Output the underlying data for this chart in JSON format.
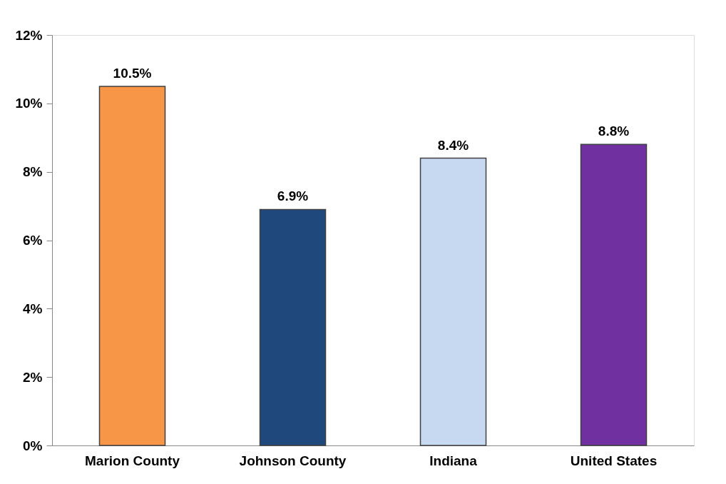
{
  "chart_data": {
    "type": "bar",
    "categories": [
      "Marion County",
      "Johnson County",
      "Indiana",
      "United States"
    ],
    "values": [
      10.5,
      6.9,
      8.4,
      8.8
    ],
    "colors": [
      "#f79646",
      "#1f497d",
      "#c6d9f1",
      "#7030a0"
    ],
    "value_labels": [
      "10.5%",
      "6.9%",
      "8.4%",
      "8.8%"
    ],
    "ylim": [
      0,
      12
    ],
    "yticks": [
      {
        "value": 0,
        "label": "0%"
      },
      {
        "value": 2,
        "label": "2%"
      },
      {
        "value": 4,
        "label": "4%"
      },
      {
        "value": 6,
        "label": "6%"
      },
      {
        "value": 8,
        "label": "8%"
      },
      {
        "value": 10,
        "label": "10%"
      },
      {
        "value": 12,
        "label": "12%"
      }
    ],
    "grid": false
  }
}
